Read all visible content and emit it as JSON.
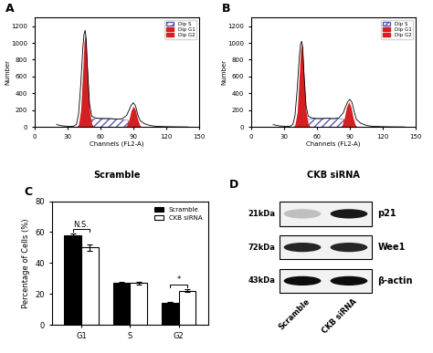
{
  "chart_data": [
    {
      "panel": "A",
      "type": "line",
      "xlabel": "Channels (FL2-A)",
      "ylabel": "Number",
      "caption": "Scramble",
      "xlim": [
        0,
        150
      ],
      "xticks": [
        0,
        30,
        60,
        90,
        120,
        150
      ],
      "ylim": [
        0,
        1300
      ],
      "yticks": [
        0,
        200,
        400,
        600,
        800,
        1000,
        1200
      ],
      "legend": "upper right",
      "series": [
        {
          "name": "Dip S",
          "type": "hatched_area",
          "color": "#5a5ab4",
          "x": [
            46,
            50,
            55,
            60,
            65,
            70,
            75,
            80,
            85,
            90
          ],
          "values": [
            0,
            80,
            100,
            105,
            105,
            100,
            95,
            90,
            80,
            0
          ]
        },
        {
          "name": "Dip G1",
          "type": "area",
          "color": "#d42020",
          "x": [
            38,
            40,
            42,
            44,
            45,
            46,
            47,
            48,
            50,
            52,
            54
          ],
          "values": [
            0,
            30,
            200,
            700,
            1000,
            1100,
            1000,
            700,
            200,
            40,
            0
          ]
        },
        {
          "name": "Dip G2",
          "type": "area",
          "color": "#d42020",
          "x": [
            82,
            84,
            86,
            88,
            90,
            92,
            94,
            96,
            98
          ],
          "values": [
            0,
            20,
            90,
            200,
            250,
            200,
            90,
            20,
            0
          ]
        },
        {
          "type": "line",
          "color": "#000000",
          "x": [
            20,
            25,
            30,
            35,
            38,
            40,
            42,
            44,
            45,
            46,
            47,
            48,
            50,
            52,
            55,
            60,
            65,
            70,
            75,
            80,
            84,
            86,
            88,
            90,
            92,
            94,
            96,
            100,
            105,
            110,
            120,
            130,
            140
          ],
          "values": [
            30,
            15,
            10,
            8,
            30,
            150,
            500,
            950,
            1100,
            1150,
            1050,
            750,
            280,
            130,
            110,
            100,
            100,
            100,
            95,
            100,
            140,
            200,
            260,
            290,
            250,
            150,
            80,
            40,
            20,
            10,
            5,
            3,
            2
          ]
        }
      ]
    },
    {
      "panel": "B",
      "type": "line",
      "xlabel": "Channels (FL2-A)",
      "ylabel": "Number",
      "caption": "CKB siRNA",
      "xlim": [
        0,
        150
      ],
      "xticks": [
        0,
        30,
        60,
        90,
        120,
        150
      ],
      "ylim": [
        0,
        1300
      ],
      "yticks": [
        0,
        200,
        400,
        600,
        800,
        1000,
        1200
      ],
      "legend": "upper right",
      "series": [
        {
          "name": "Dip S",
          "type": "hatched_area",
          "color": "#5a5ab4",
          "x": [
            46,
            50,
            55,
            60,
            65,
            70,
            75,
            80,
            85,
            90
          ],
          "values": [
            0,
            80,
            100,
            105,
            105,
            105,
            100,
            100,
            90,
            0
          ]
        },
        {
          "name": "Dip G1",
          "type": "area",
          "color": "#d42020",
          "x": [
            38,
            40,
            42,
            44,
            45,
            46,
            47,
            48,
            50,
            52,
            54
          ],
          "values": [
            0,
            30,
            180,
            650,
            900,
            1000,
            900,
            640,
            190,
            40,
            0
          ]
        },
        {
          "name": "Dip G2",
          "type": "area",
          "color": "#d42020",
          "x": [
            81,
            83,
            85,
            87,
            89,
            91,
            93,
            95,
            97
          ],
          "values": [
            0,
            25,
            110,
            240,
            300,
            240,
            110,
            25,
            0
          ]
        },
        {
          "type": "line",
          "color": "#000000",
          "x": [
            20,
            25,
            30,
            35,
            38,
            40,
            42,
            44,
            45,
            46,
            47,
            48,
            50,
            52,
            55,
            60,
            65,
            70,
            75,
            80,
            84,
            86,
            88,
            90,
            92,
            94,
            96,
            100,
            105,
            110,
            120,
            130,
            140
          ],
          "values": [
            30,
            15,
            10,
            8,
            30,
            140,
            450,
            850,
            980,
            1020,
            950,
            680,
            260,
            130,
            110,
            100,
            100,
            105,
            100,
            110,
            170,
            240,
            300,
            330,
            290,
            180,
            90,
            45,
            20,
            10,
            5,
            3,
            2
          ]
        }
      ]
    },
    {
      "panel": "C",
      "type": "bar",
      "ylabel": "Percentage of Cells (%)",
      "categories": [
        "G1",
        "S",
        "G2"
      ],
      "ylim": [
        0,
        80
      ],
      "yticks": [
        0,
        20,
        40,
        60,
        80
      ],
      "legend": "upper right",
      "series": [
        {
          "name": "Scramble",
          "color": "#000000",
          "values": [
            58,
            27,
            14
          ],
          "errors": [
            0.8,
            1,
            0.6
          ]
        },
        {
          "name": "CKB siRNA",
          "color": "#ffffff",
          "values": [
            50,
            27,
            22
          ],
          "errors": [
            2,
            1,
            1
          ]
        }
      ],
      "annotations": [
        {
          "text": "N.S.",
          "category": "G1"
        },
        {
          "text": "*",
          "category": "G2"
        }
      ]
    }
  ],
  "blot": {
    "panel": "D",
    "lanes": [
      "Scramble",
      "CKB siRNA"
    ],
    "rows": [
      {
        "size": "21kDa",
        "protein": "p21",
        "intensity": [
          0.25,
          0.9
        ]
      },
      {
        "size": "72kDa",
        "protein": "Wee1",
        "intensity": [
          0.85,
          0.85
        ]
      },
      {
        "size": "43kDa",
        "protein": "β-actin",
        "intensity": [
          0.95,
          0.95
        ]
      }
    ]
  }
}
